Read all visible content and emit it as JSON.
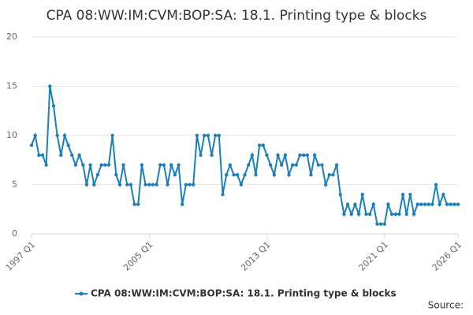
{
  "chart_data": {
    "type": "line",
    "title": "CPA 08:WW:IM:CVM:BOP:SA: 18.1. Printing type & blocks",
    "categories": [
      "1997 Q1",
      null,
      null,
      null,
      null,
      null,
      null,
      null,
      null,
      null,
      null,
      null,
      null,
      null,
      null,
      null,
      null,
      null,
      null,
      null,
      null,
      null,
      null,
      null,
      null,
      null,
      null,
      null,
      null,
      null,
      null,
      null,
      "2005 Q1",
      null,
      null,
      null,
      null,
      null,
      null,
      null,
      null,
      null,
      null,
      null,
      null,
      null,
      null,
      null,
      null,
      null,
      null,
      null,
      null,
      null,
      null,
      null,
      null,
      null,
      null,
      null,
      null,
      null,
      null,
      null,
      "2013 Q1",
      null,
      null,
      null,
      null,
      null,
      null,
      null,
      null,
      null,
      null,
      null,
      null,
      null,
      null,
      null,
      null,
      null,
      null,
      null,
      null,
      null,
      null,
      null,
      null,
      null,
      null,
      null,
      null,
      null,
      null,
      null,
      "2021 Q1",
      null,
      null,
      null,
      null,
      null,
      null,
      null,
      null,
      null,
      null,
      null,
      null,
      null,
      null,
      null,
      null,
      null,
      null,
      null,
      "2026 Q1"
    ],
    "series": [
      {
        "name": "CPA 08:WW:IM:CVM:BOP:SA: 18.1. Printing type & blocks",
        "color": "#1a7fba",
        "values": [
          9,
          10,
          8,
          8,
          7,
          15,
          13,
          10,
          8,
          10,
          9,
          8,
          7,
          8,
          7,
          5,
          7,
          5,
          6,
          7,
          7,
          7,
          10,
          6,
          5,
          7,
          5,
          5,
          3,
          3,
          7,
          5,
          5,
          5,
          5,
          7,
          7,
          5,
          7,
          6,
          7,
          3,
          5,
          5,
          5,
          10,
          8,
          10,
          10,
          8,
          10,
          10,
          4,
          6,
          7,
          6,
          6,
          5,
          6,
          7,
          8,
          6,
          9,
          9,
          8,
          7,
          6,
          8,
          7,
          8,
          6,
          7,
          7,
          8,
          8,
          8,
          6,
          8,
          7,
          7,
          5,
          6,
          6,
          7,
          4,
          2,
          3,
          2,
          3,
          2,
          4,
          2,
          2,
          3,
          1,
          1,
          1,
          3,
          2,
          2,
          2,
          4,
          2,
          4,
          2,
          3,
          3,
          3,
          3,
          3,
          5,
          3,
          4,
          3,
          3,
          3,
          3
        ]
      }
    ],
    "ylim": [
      0,
      20
    ],
    "yticks": [
      0,
      5,
      10,
      15,
      20
    ],
    "grid": true,
    "legend": "bottom",
    "source": "Source:"
  }
}
